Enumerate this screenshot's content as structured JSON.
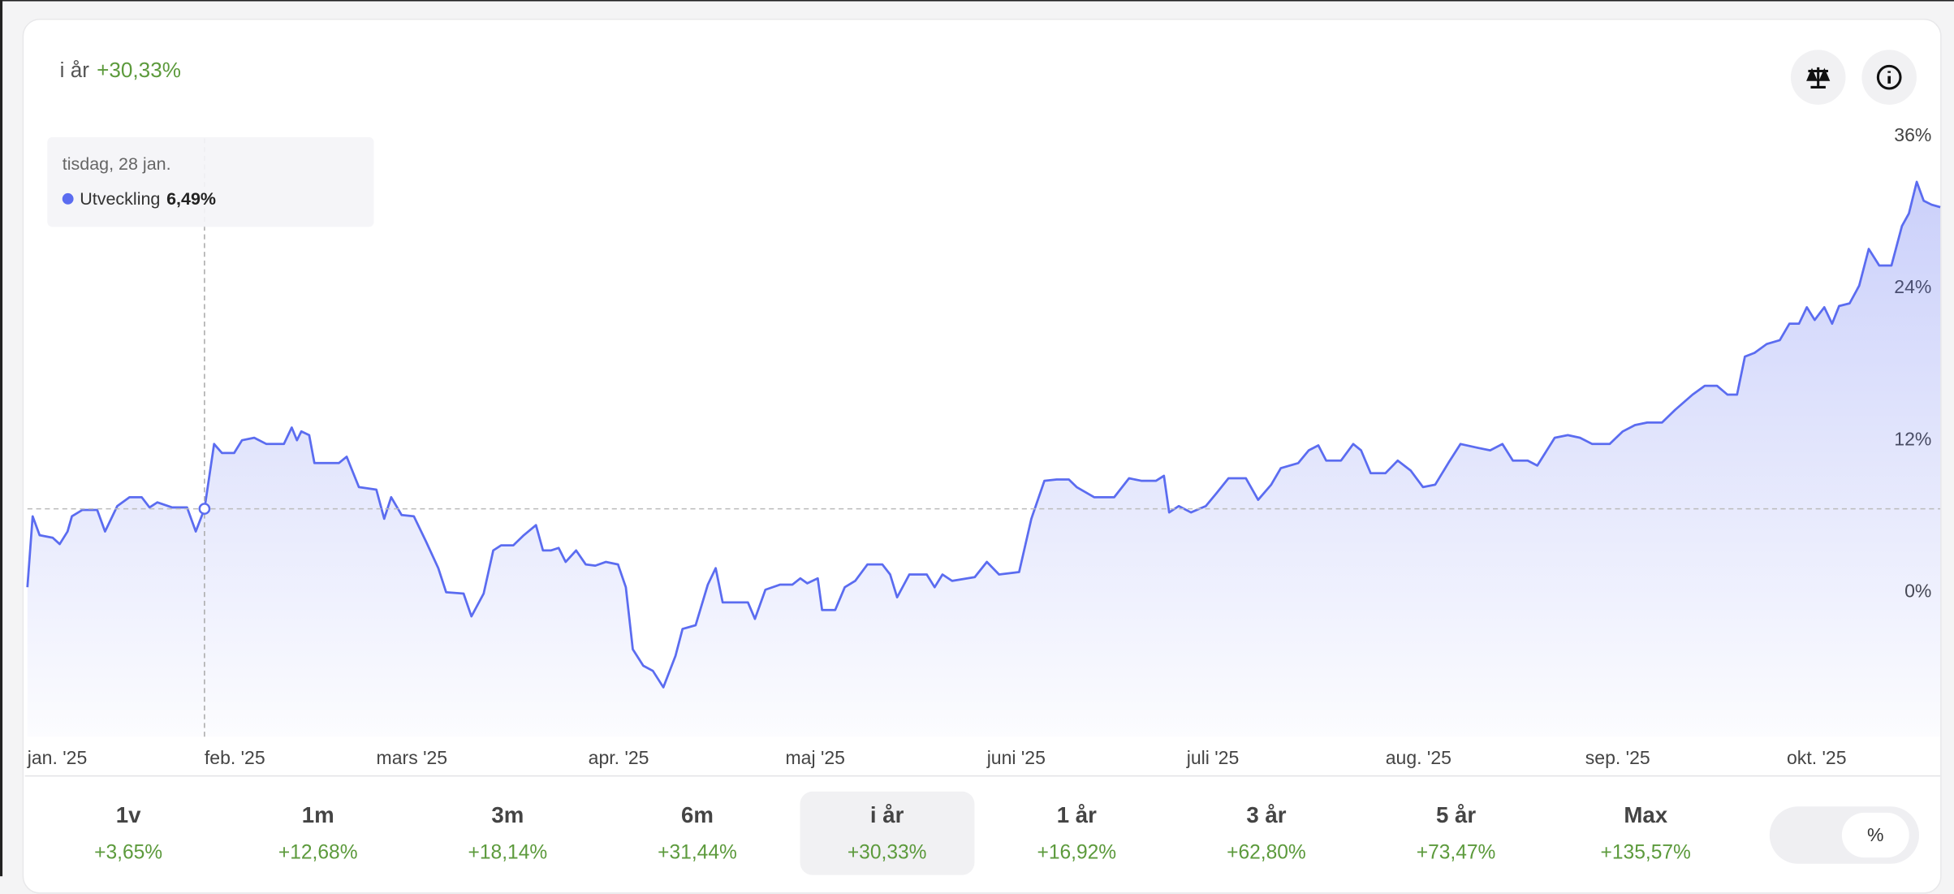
{
  "header": {
    "period": "i år",
    "change": "+30,33%"
  },
  "tooltip": {
    "date": "tisdag, 28 jan.",
    "value": "6,49%"
  },
  "chart_data": {
    "type": "area",
    "x": [
      0,
      0.6,
      1.4,
      2.9,
      3.7,
      4.6,
      5.1,
      6.3,
      8,
      8.9,
      10.3,
      11.7,
      13.1,
      14,
      14.9,
      16.6,
      18.3,
      19.3,
      20.3,
      21.4,
      22.3,
      23.7,
      24.6,
      26,
      27.4,
      29.4,
      30.3,
      30.9,
      31.4,
      32.3,
      32.9,
      34.6,
      35.7,
      36.6,
      38,
      40,
      40.9,
      41.7,
      42.9,
      44.3,
      45.7,
      47.1,
      48,
      50,
      50.9,
      52.3,
      53.4,
      54.3,
      55.7,
      56.9,
      58.3,
      59.1,
      60,
      60.9,
      61.7,
      62.9,
      64,
      65.1,
      66.3,
      67.7,
      68.6,
      69.4,
      70.6,
      71.7,
      72.9,
      74.3,
      75.1,
      76.6,
      78,
      78.9,
      79.7,
      82.6,
      83.4,
      84.6,
      86.3,
      87.7,
      88.6,
      89.4,
      90.6,
      91.1,
      92.6,
      93.7,
      94.9,
      96.3,
      98,
      98.9,
      99.7,
      101.1,
      103.1,
      104,
      104.9,
      106,
      108.6,
      110,
      111.4,
      113.7,
      115.1,
      116.6,
      118,
      119.4,
      120.3,
      122.3,
      124.6,
      126.3,
      127.7,
      129.4,
      130.3,
      130.9,
      132,
      133.4,
      135.1,
      136.3,
      137.7,
      139.7,
      141.1,
      142.6,
      143.7,
      145.7,
      146.9,
      148,
      148.9,
      150.6,
      152,
      152.9,
      154,
      155.7,
      157.1,
      158.6,
      160,
      161.4,
      162.9,
      164.3,
      166.3,
      167.7,
      169.1,
      170.3,
      172,
      173.1,
      175.1,
      176.6,
      178,
      179.4,
      181.4,
      182.9,
      184.3,
      185.7,
      187.4,
      188.9,
      190.9,
      192.3,
      193.7,
      194.9,
      196,
      196.9,
      198,
      199.4,
      200.9,
      202,
      203.1,
      204,
      204.9,
      206,
      206.9,
      207.7,
      208.9,
      210,
      211.1,
      212.3,
      213.7,
      214.9,
      215.7,
      216.6,
      217.4,
      218.3,
      219.3
    ],
    "series": [
      {
        "name": "Utveckling",
        "color": "#5b6cf0",
        "values": [
          0.3,
          5.9,
          4.4,
          4.2,
          3.7,
          4.7,
          5.9,
          6.4,
          6.4,
          4.7,
          6.7,
          7.4,
          7.4,
          6.6,
          7.0,
          6.6,
          6.6,
          4.7,
          6.49,
          11.6,
          10.9,
          10.9,
          11.9,
          12.1,
          11.6,
          11.6,
          12.9,
          11.9,
          12.6,
          12.3,
          10.1,
          10.1,
          10.1,
          10.6,
          8.2,
          8.0,
          5.7,
          7.4,
          6.0,
          5.9,
          3.9,
          1.8,
          -0.1,
          -0.2,
          -2.0,
          -0.2,
          3.2,
          3.6,
          3.6,
          4.4,
          5.2,
          3.2,
          3.2,
          3.4,
          2.3,
          3.2,
          2.1,
          2.0,
          2.3,
          2.1,
          0.3,
          -4.6,
          -5.9,
          -6.3,
          -7.6,
          -5.1,
          -3.0,
          -2.7,
          0.5,
          1.8,
          -0.9,
          -0.9,
          -2.2,
          0.1,
          0.5,
          0.5,
          1.0,
          0.6,
          1.0,
          -1.5,
          -1.5,
          0.3,
          0.8,
          2.1,
          2.1,
          1.3,
          -0.5,
          1.3,
          1.3,
          0.3,
          1.3,
          0.8,
          1.1,
          2.3,
          1.3,
          1.5,
          5.7,
          8.7,
          8.8,
          8.8,
          8.2,
          7.4,
          7.4,
          8.9,
          8.7,
          8.7,
          9.1,
          6.2,
          6.7,
          6.2,
          6.7,
          7.7,
          8.9,
          8.9,
          7.2,
          8.4,
          9.7,
          10.1,
          11.1,
          11.5,
          10.3,
          10.3,
          11.6,
          11.1,
          9.3,
          9.3,
          10.3,
          9.5,
          8.2,
          8.4,
          10.1,
          11.6,
          11.3,
          11.1,
          11.6,
          10.3,
          10.3,
          9.9,
          12.1,
          12.3,
          12.1,
          11.6,
          11.6,
          12.6,
          13.1,
          13.3,
          13.3,
          14.3,
          15.5,
          16.2,
          16.2,
          15.5,
          15.5,
          18.5,
          18.8,
          19.5,
          19.8,
          21.1,
          21.1,
          22.4,
          21.4,
          22.4,
          21.1,
          22.5,
          22.7,
          24.1,
          27.0,
          25.7,
          25.7,
          28.8,
          29.8,
          32.3,
          30.8,
          30.5,
          30.3
        ]
      }
    ],
    "xlim": [
      0,
      219.3
    ],
    "xticks": [
      {
        "value": 0,
        "label": "jan. '25"
      },
      {
        "value": 20.3,
        "label": "feb. '25"
      },
      {
        "value": 40,
        "label": "mars '25"
      },
      {
        "value": 64.3,
        "label": "apr. '25"
      },
      {
        "value": 86.9,
        "label": "maj '25"
      },
      {
        "value": 110,
        "label": "juni '25"
      },
      {
        "value": 132.9,
        "label": "juli '25"
      },
      {
        "value": 155.7,
        "label": "aug. '25"
      },
      {
        "value": 178.6,
        "label": "sep. '25"
      },
      {
        "value": 201.7,
        "label": "okt. '25"
      }
    ],
    "ylim": [
      -11.5,
      37.7
    ],
    "yticks": [
      {
        "value": 0,
        "label": "0%"
      },
      {
        "value": 12,
        "label": "12%"
      },
      {
        "value": 24,
        "label": "24%"
      },
      {
        "value": 36,
        "label": "36%"
      }
    ]
  },
  "periods": [
    {
      "label": "1v",
      "change": "+3,65%"
    },
    {
      "label": "1m",
      "change": "+12,68%"
    },
    {
      "label": "3m",
      "change": "+18,14%"
    },
    {
      "label": "6m",
      "change": "+31,44%"
    },
    {
      "label": "i år",
      "change": "+30,33%"
    },
    {
      "label": "1 år",
      "change": "+16,92%"
    },
    {
      "label": "3 år",
      "change": "+62,80%"
    },
    {
      "label": "5 år",
      "change": "+73,47%"
    },
    {
      "label": "Max",
      "change": "+135,57%"
    }
  ],
  "toggle": "%"
}
